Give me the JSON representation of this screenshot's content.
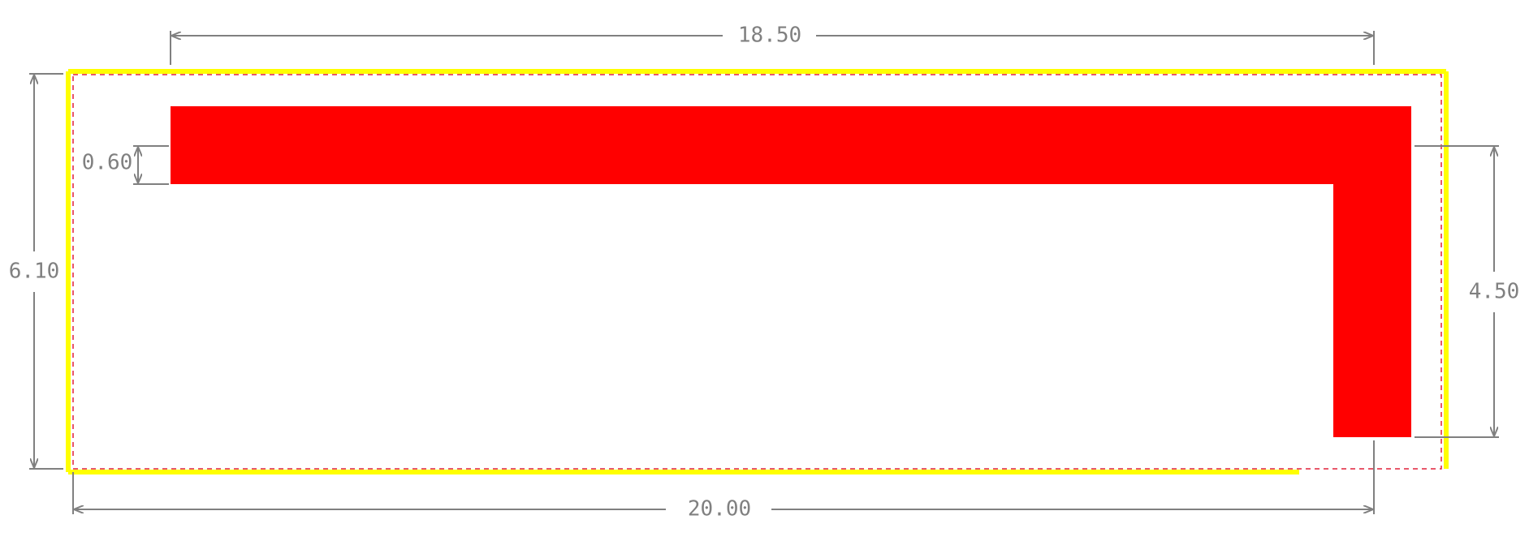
{
  "colors": {
    "background": "#ffffff",
    "dimension": "#808080",
    "outline": "#ffff00",
    "dashed_guide": "#e0203a",
    "shape_fill": "#ff0000"
  },
  "dimensions": {
    "top": "18.50",
    "bottom": "20.00",
    "left": "6.10",
    "right": "4.50",
    "thickness": "0.60"
  }
}
